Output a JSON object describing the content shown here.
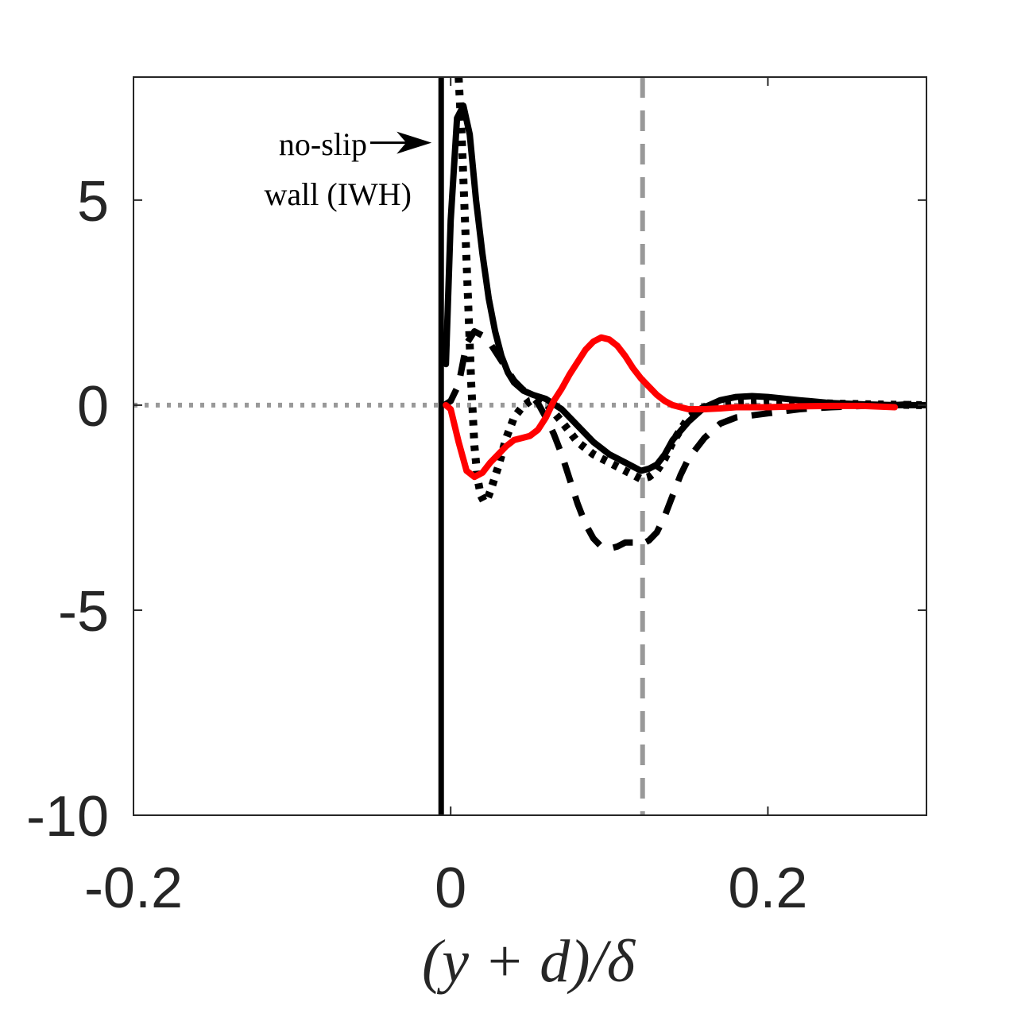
{
  "chart_data": {
    "type": "line",
    "title": "",
    "xlabel": "(y + d)/δ",
    "ylabel": "",
    "xlim": [
      -0.2,
      0.3
    ],
    "ylim": [
      -10,
      8
    ],
    "xticks": [
      -0.2,
      0,
      0.2
    ],
    "xtick_labels": [
      "-0.2",
      "0",
      "0.2"
    ],
    "yticks": [
      -10,
      -5,
      0,
      5
    ],
    "ytick_labels": [
      "-10",
      "-5",
      "0",
      "5"
    ],
    "grid": false,
    "legend": "none",
    "colors": {
      "black": "#000000",
      "red": "#ff0000",
      "gray": "#999999",
      "axis": "#262626"
    },
    "annotation": {
      "line1": "no-slip",
      "line2": "wall (IWH)",
      "arrow_to": {
        "x": -0.006,
        "y": 6.4
      }
    },
    "reference_lines": [
      {
        "name": "zero-line",
        "orientation": "horizontal",
        "value": 0,
        "color": "#999999",
        "style": "dotted"
      },
      {
        "name": "wall-line",
        "orientation": "vertical",
        "value": -0.006,
        "color": "#000000",
        "style": "solid"
      },
      {
        "name": "reference-x-line",
        "orientation": "vertical",
        "value": 0.121,
        "color": "#999999",
        "style": "dashed"
      }
    ],
    "series": [
      {
        "name": "black solid (peak)",
        "color": "#000000",
        "style": "solid",
        "x": [
          -0.003,
          0.0,
          0.004,
          0.008,
          0.012,
          0.016,
          0.02,
          0.024,
          0.028,
          0.032,
          0.036,
          0.04,
          0.046,
          0.052,
          0.06,
          0.07,
          0.08,
          0.09,
          0.1,
          0.11,
          0.12,
          0.125,
          0.13,
          0.135,
          0.14,
          0.15,
          0.16,
          0.17,
          0.18,
          0.19,
          0.2,
          0.22,
          0.24,
          0.26,
          0.28,
          0.3
        ],
        "y": [
          1.0,
          4.5,
          7.0,
          7.3,
          6.6,
          5.0,
          3.7,
          2.6,
          1.8,
          1.2,
          0.8,
          0.55,
          0.35,
          0.25,
          0.15,
          -0.1,
          -0.5,
          -0.9,
          -1.2,
          -1.4,
          -1.6,
          -1.55,
          -1.45,
          -1.2,
          -0.85,
          -0.4,
          -0.05,
          0.12,
          0.2,
          0.22,
          0.2,
          0.12,
          0.05,
          0.02,
          0.0,
          0.0
        ]
      },
      {
        "name": "black dotted",
        "color": "#000000",
        "style": "dotted",
        "x": [
          0.005,
          0.007,
          0.009,
          0.011,
          0.013,
          0.015,
          0.017,
          0.019,
          0.021,
          0.023,
          0.025,
          0.03,
          0.035,
          0.04,
          0.045,
          0.05,
          0.055,
          0.06,
          0.07,
          0.08,
          0.09,
          0.1,
          0.11,
          0.12,
          0.125,
          0.13,
          0.135,
          0.14,
          0.15,
          0.16,
          0.18,
          0.2,
          0.22,
          0.25,
          0.28,
          0.3
        ],
        "y": [
          8.0,
          6.5,
          4.5,
          2.5,
          0.5,
          -1.0,
          -1.8,
          -2.2,
          -2.35,
          -2.3,
          -2.1,
          -1.5,
          -0.8,
          -0.3,
          -0.05,
          0.1,
          0.15,
          0.05,
          -0.4,
          -0.9,
          -1.2,
          -1.4,
          -1.6,
          -1.8,
          -1.75,
          -1.6,
          -1.3,
          -0.9,
          -0.3,
          -0.05,
          0.05,
          0.08,
          0.06,
          0.03,
          0.01,
          0.0
        ]
      },
      {
        "name": "black dashed",
        "color": "#000000",
        "style": "dashed",
        "x": [
          -0.004,
          0.0,
          0.005,
          0.01,
          0.015,
          0.02,
          0.025,
          0.03,
          0.035,
          0.04,
          0.045,
          0.05,
          0.055,
          0.06,
          0.065,
          0.07,
          0.075,
          0.08,
          0.085,
          0.09,
          0.095,
          0.1,
          0.105,
          0.11,
          0.115,
          0.12,
          0.125,
          0.13,
          0.135,
          0.14,
          0.145,
          0.15,
          0.16,
          0.17,
          0.18,
          0.19,
          0.2,
          0.22,
          0.24,
          0.26,
          0.28,
          0.3
        ],
        "y": [
          0.0,
          0.1,
          0.5,
          1.5,
          1.8,
          1.7,
          1.5,
          1.2,
          0.9,
          0.6,
          0.4,
          0.25,
          0.05,
          -0.3,
          -0.7,
          -1.2,
          -1.8,
          -2.4,
          -2.9,
          -3.25,
          -3.45,
          -3.5,
          -3.45,
          -3.35,
          -3.35,
          -3.4,
          -3.3,
          -3.1,
          -2.7,
          -2.2,
          -1.7,
          -1.3,
          -0.8,
          -0.45,
          -0.3,
          -0.25,
          -0.2,
          -0.1,
          -0.05,
          -0.02,
          0.0,
          0.05
        ]
      },
      {
        "name": "red solid",
        "color": "#ff0000",
        "style": "solid",
        "x": [
          -0.003,
          0.0,
          0.005,
          0.01,
          0.015,
          0.02,
          0.025,
          0.03,
          0.035,
          0.04,
          0.045,
          0.05,
          0.055,
          0.06,
          0.065,
          0.07,
          0.075,
          0.08,
          0.085,
          0.09,
          0.095,
          0.1,
          0.105,
          0.11,
          0.115,
          0.12,
          0.125,
          0.13,
          0.135,
          0.14,
          0.145,
          0.15,
          0.16,
          0.17,
          0.18,
          0.2,
          0.22,
          0.24,
          0.26,
          0.28
        ],
        "y": [
          0.0,
          -0.1,
          -0.9,
          -1.6,
          -1.75,
          -1.65,
          -1.4,
          -1.2,
          -1.0,
          -0.85,
          -0.8,
          -0.75,
          -0.6,
          -0.3,
          0.1,
          0.4,
          0.75,
          1.05,
          1.35,
          1.55,
          1.65,
          1.6,
          1.45,
          1.2,
          0.9,
          0.65,
          0.45,
          0.25,
          0.1,
          0.0,
          -0.05,
          -0.1,
          -0.1,
          -0.08,
          -0.05,
          -0.05,
          -0.03,
          -0.02,
          -0.02,
          -0.05
        ]
      }
    ]
  }
}
